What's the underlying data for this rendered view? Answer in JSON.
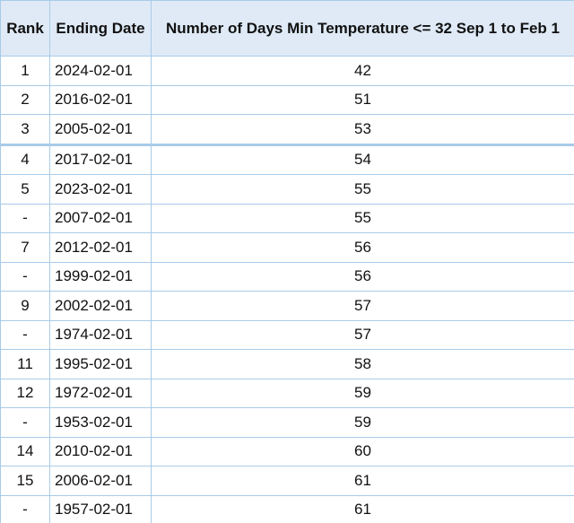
{
  "table": {
    "header": [
      "Rank",
      "Ending Date",
      "Number of Days Min Temperature <= 32 Sep 1 to Feb 1"
    ],
    "rows": [
      [
        1,
        "2024-02-01",
        42
      ],
      [
        2,
        "2016-02-01",
        51
      ],
      [
        3,
        "2005-02-01",
        53
      ],
      [
        4,
        "2017-02-01",
        54
      ],
      [
        5,
        "2023-02-01",
        55
      ],
      [
        "-",
        "2007-02-01",
        55
      ],
      [
        7,
        "2012-02-01",
        56
      ],
      [
        "-",
        "1999-02-01",
        56
      ],
      [
        9,
        "2002-02-01",
        57
      ],
      [
        "-",
        "1974-02-01",
        57
      ],
      [
        11,
        "1995-02-01",
        58
      ],
      [
        12,
        "1972-02-01",
        59
      ],
      [
        "-",
        "1953-02-01",
        59
      ],
      [
        14,
        "2010-02-01",
        60
      ],
      [
        15,
        "2006-02-01",
        61
      ],
      [
        "-",
        "1957-02-01",
        61
      ]
    ]
  }
}
